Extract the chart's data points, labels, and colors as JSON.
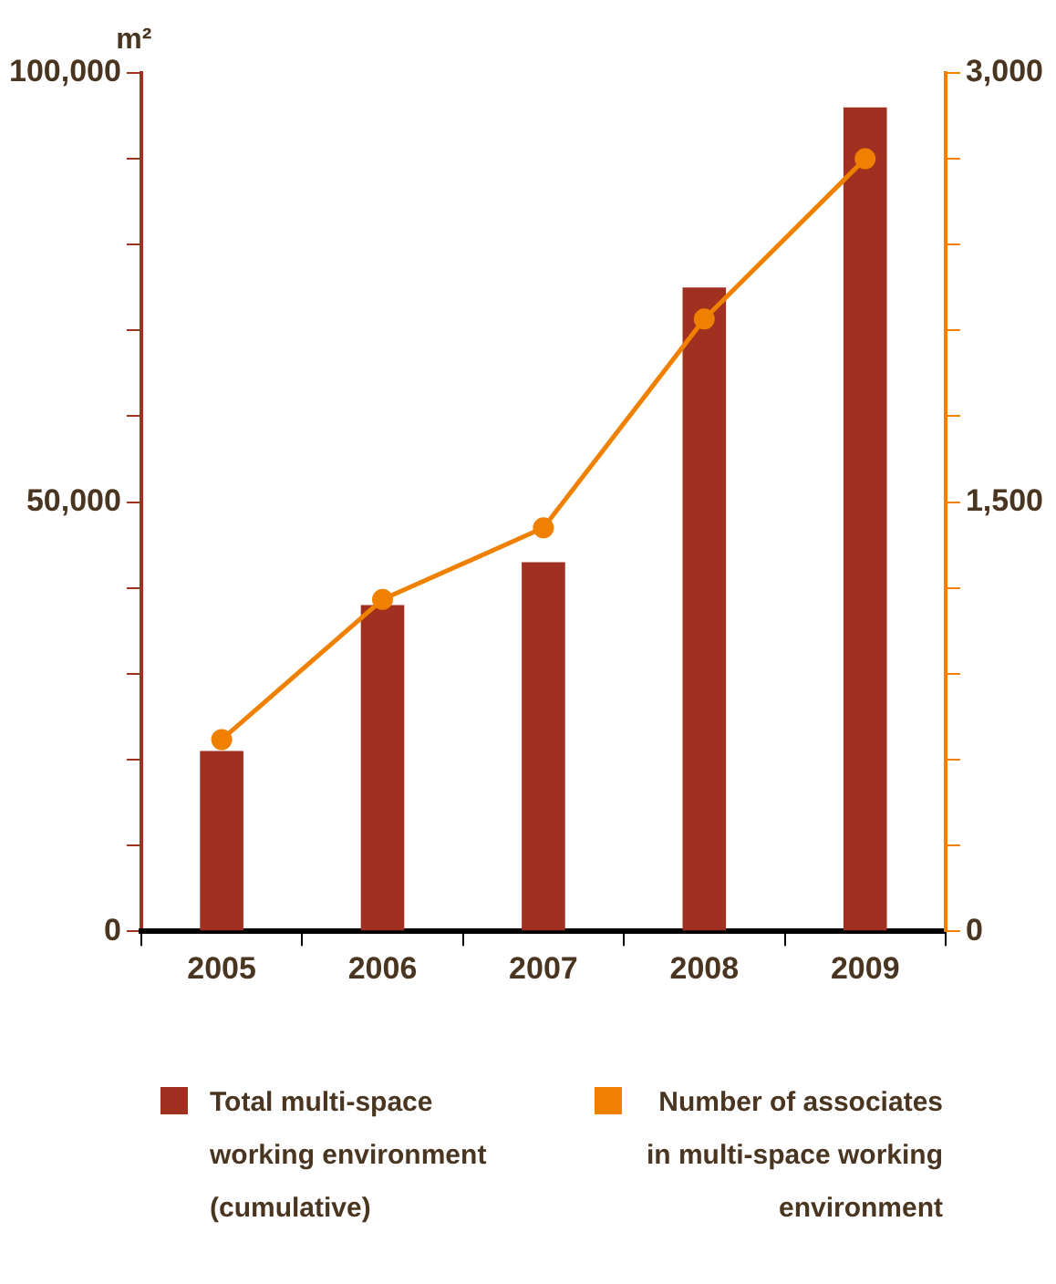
{
  "chart_data": {
    "type": "bar",
    "ylabel": "m²",
    "categories": [
      "2005",
      "2006",
      "2007",
      "2008",
      "2009"
    ],
    "series": [
      {
        "name": "Total multi-space working environment (cumulative)",
        "color": "#a03020",
        "values": [
          21000,
          38000,
          43000,
          75000,
          96000
        ]
      },
      {
        "name": "Number of associates in multi-space working environment",
        "type": "line",
        "axis": "y2",
        "color": "#f08000",
        "values": [
          670,
          1160,
          1410,
          2140,
          2700
        ]
      }
    ],
    "ylim": [
      0,
      100000
    ],
    "yticks": [
      0,
      {
        "value": 10000,
        "label": null
      },
      {
        "value": 20000,
        "label": null
      },
      {
        "value": 30000,
        "label": null
      },
      {
        "value": 40000,
        "label": null
      },
      {
        "value": 50000,
        "label": "50,000"
      },
      {
        "value": 60000,
        "label": null
      },
      {
        "value": 70000,
        "label": null
      },
      {
        "value": 80000,
        "label": null
      },
      {
        "value": 90000,
        "label": null
      },
      {
        "value": 100000,
        "label": "100,000"
      }
    ],
    "y2lim": [
      0,
      3000
    ],
    "y2ticks": [
      0,
      {
        "value": 300,
        "label": null
      },
      {
        "value": 600,
        "label": null
      },
      {
        "value": 900,
        "label": null
      },
      {
        "value": 1200,
        "label": null
      },
      {
        "value": 1500,
        "label": "1,500"
      },
      {
        "value": 1800,
        "label": null
      },
      {
        "value": 2100,
        "label": null
      },
      {
        "value": 2400,
        "label": null
      },
      {
        "value": 2700,
        "label": null
      },
      {
        "value": 3000,
        "label": "3,000"
      }
    ],
    "grid": false,
    "legend": "bottom",
    "marker": "circle"
  }
}
